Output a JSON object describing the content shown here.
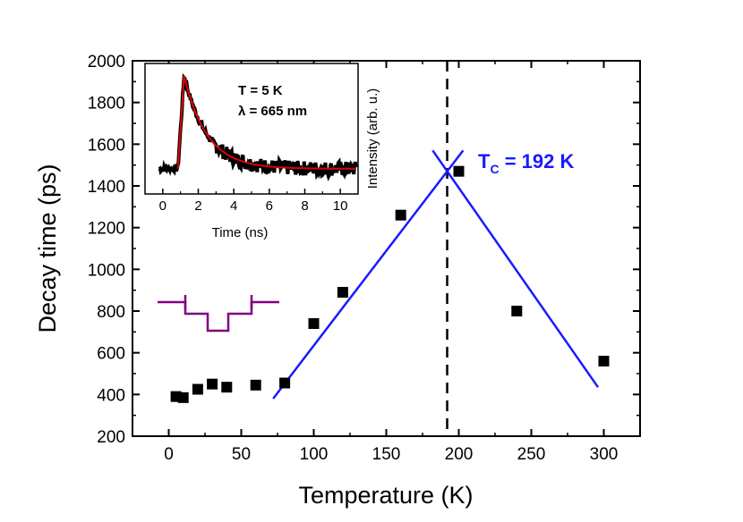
{
  "chart_data": [
    {
      "id": "main",
      "type": "scatter",
      "xlabel": "Temperature (K)",
      "ylabel": "Decay time (ps)",
      "xlim": [
        -25,
        325
      ],
      "ylim": [
        200,
        2000
      ],
      "xticks": [
        0,
        50,
        100,
        150,
        200,
        250,
        300
      ],
      "yticks": [
        200,
        400,
        600,
        800,
        1000,
        1200,
        1400,
        1600,
        1800,
        2000
      ],
      "series": [
        {
          "name": "Decay time",
          "marker": "square",
          "color": "#000000",
          "points": [
            {
              "x": 5,
              "y": 390
            },
            {
              "x": 10,
              "y": 385
            },
            {
              "x": 20,
              "y": 425
            },
            {
              "x": 30,
              "y": 450
            },
            {
              "x": 40,
              "y": 435
            },
            {
              "x": 60,
              "y": 445
            },
            {
              "x": 80,
              "y": 455
            },
            {
              "x": 100,
              "y": 740
            },
            {
              "x": 120,
              "y": 890
            },
            {
              "x": 160,
              "y": 1260
            },
            {
              "x": 200,
              "y": 1470
            },
            {
              "x": 240,
              "y": 800
            },
            {
              "x": 300,
              "y": 560
            }
          ]
        }
      ],
      "fit_lines": [
        {
          "name": "rising-fit",
          "color": "#1a1aff",
          "x": [
            72,
            203
          ],
          "y": [
            380,
            1570
          ]
        },
        {
          "name": "falling-fit",
          "color": "#1a1aff",
          "x": [
            182,
            296
          ],
          "y": [
            1570,
            435
          ]
        }
      ],
      "vline": {
        "x": 192,
        "style": "dashed",
        "color": "#000000"
      },
      "annotation": {
        "text": "T",
        "subscript": "C",
        "suffix": " = 192 K",
        "color": "#1a1aff"
      },
      "schematic_color": "#800080"
    },
    {
      "id": "inset",
      "type": "line",
      "xlabel": "Time (ns)",
      "ylabel": "Intensity (arb. u.)",
      "xlim": [
        -1,
        11
      ],
      "ylim": [
        0,
        1
      ],
      "xticks": [
        0,
        2,
        4,
        6,
        8,
        10
      ],
      "annotations": [
        "T = 5 K",
        "λ = 665 nm"
      ],
      "series": [
        {
          "name": "data",
          "color": "#000000",
          "marker": "square"
        },
        {
          "name": "fit",
          "color": "#e00000"
        }
      ]
    }
  ]
}
